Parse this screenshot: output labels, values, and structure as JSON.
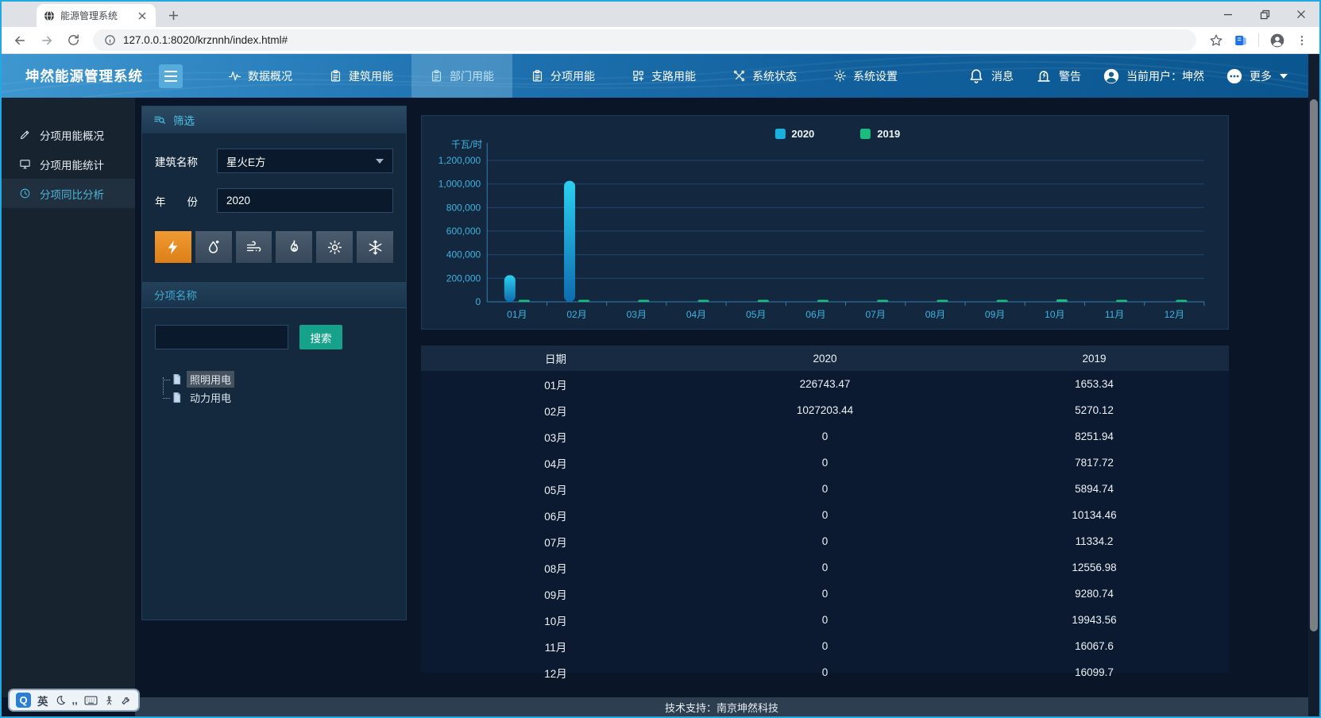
{
  "browser": {
    "tab_title": "能源管理系统",
    "url": "127.0.0.1:8020/krznnh/index.html#"
  },
  "header": {
    "logo": "坤然能源管理系统",
    "nav": [
      {
        "label": "数据概况",
        "icon": "activity",
        "active": false
      },
      {
        "label": "建筑用能",
        "icon": "clipboard",
        "active": false
      },
      {
        "label": "部门用能",
        "icon": "clipboard",
        "active": true
      },
      {
        "label": "分项用能",
        "icon": "clipboard",
        "active": false
      },
      {
        "label": "支路用能",
        "icon": "grid",
        "active": false
      },
      {
        "label": "系统状态",
        "icon": "tools",
        "active": false
      },
      {
        "label": "系统设置",
        "icon": "gear",
        "active": false
      }
    ],
    "right": {
      "messages": "消息",
      "alerts": "警告",
      "user": "当前用户：坤然",
      "more": "更多"
    }
  },
  "sidebar": {
    "items": [
      {
        "label": "分项用能概况",
        "icon": "pencil",
        "active": false
      },
      {
        "label": "分项用能统计",
        "icon": "monitor",
        "active": false
      },
      {
        "label": "分项同比分析",
        "icon": "clock",
        "active": true
      }
    ]
  },
  "filter": {
    "title": "筛选",
    "building_label": "建筑名称",
    "building_value": "星火E方",
    "year_label": "年　　份",
    "year_value": "2020",
    "energy_types": [
      {
        "name": "electricity",
        "icon": "lightning",
        "active": true
      },
      {
        "name": "water",
        "icon": "droplet",
        "active": false
      },
      {
        "name": "wind",
        "icon": "wind",
        "active": false
      },
      {
        "name": "gas",
        "icon": "gas",
        "active": false
      },
      {
        "name": "sunlight",
        "icon": "sun",
        "active": false
      },
      {
        "name": "cooling",
        "icon": "snow",
        "active": false
      }
    ],
    "section_title": "分项名称",
    "search_value": "",
    "search_button": "搜索",
    "tree": [
      {
        "label": "照明用电",
        "selected": true
      },
      {
        "label": "动力用电",
        "selected": false
      }
    ]
  },
  "chart_data": {
    "type": "bar",
    "unit_label": "千瓦/时",
    "categories": [
      "01月",
      "02月",
      "03月",
      "04月",
      "05月",
      "06月",
      "07月",
      "08月",
      "09月",
      "10月",
      "11月",
      "12月"
    ],
    "series": [
      {
        "name": "2020",
        "color": "#18b2e0",
        "values": [
          226743.47,
          1027203.44,
          0,
          0,
          0,
          0,
          0,
          0,
          0,
          0,
          0,
          0
        ]
      },
      {
        "name": "2019",
        "color": "#1bbd7e",
        "values": [
          1653.34,
          5270.12,
          8251.94,
          7817.72,
          5894.74,
          10134.46,
          11334.2,
          12556.98,
          9280.74,
          19943.56,
          16067.6,
          16099.7
        ]
      }
    ],
    "ylim": [
      0,
      1200000
    ],
    "ytick_step": 200000,
    "legend_position": "top",
    "grid": true
  },
  "table": {
    "columns": [
      "日期",
      "2020",
      "2019"
    ],
    "rows": [
      [
        "01月",
        "226743.47",
        "1653.34"
      ],
      [
        "02月",
        "1027203.44",
        "5270.12"
      ],
      [
        "03月",
        "0",
        "8251.94"
      ],
      [
        "04月",
        "0",
        "7817.72"
      ],
      [
        "05月",
        "0",
        "5894.74"
      ],
      [
        "06月",
        "0",
        "10134.46"
      ],
      [
        "07月",
        "0",
        "11334.2"
      ],
      [
        "08月",
        "0",
        "12556.98"
      ],
      [
        "09月",
        "0",
        "9280.74"
      ],
      [
        "10月",
        "0",
        "19943.56"
      ],
      [
        "11月",
        "0",
        "16067.6"
      ],
      [
        "12月",
        "0",
        "16099.7"
      ]
    ]
  },
  "footer": {
    "text": "技术支持：南京坤然科技"
  },
  "ime": {
    "brand": "Q",
    "mode": "英"
  },
  "colors": {
    "window_border": "#23a9e1",
    "header_gradient_start": "#3f97d0",
    "header_gradient_end": "#0a568f",
    "page_bg": "#0a1627",
    "panel_bg": "#14293e",
    "bar_2020": "#18b2e0",
    "bar_2019": "#1bbd7e",
    "active_orange": "#e8882a",
    "teal_button": "#16a18a",
    "axis_text": "#3fb3e0"
  }
}
